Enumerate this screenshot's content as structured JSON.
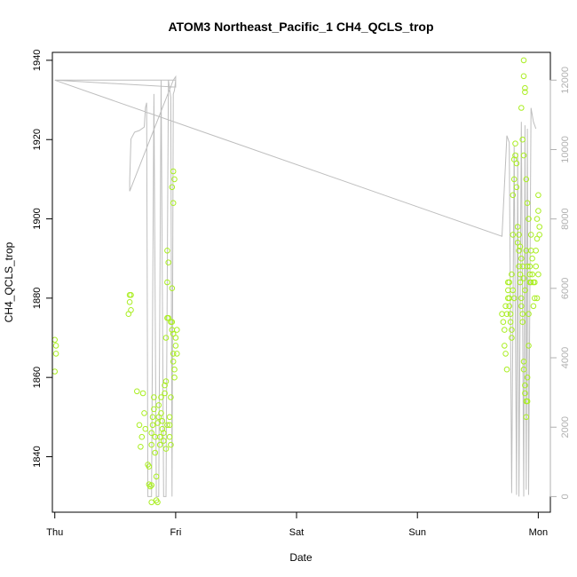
{
  "chart_data": {
    "type": "scatter",
    "title": "ATOM3 Northeast_Pacific_1 CH4_QCLS_trop",
    "xlabel": "Date",
    "ylabel": "CH4_QCLS_trop",
    "xlim_days": [
      -0.02,
      4.1
    ],
    "ylim": [
      1826,
      1942
    ],
    "y2lim": [
      -450,
      12800
    ],
    "x_ticks": [
      {
        "pos": 0,
        "label": "Thu"
      },
      {
        "pos": 1,
        "label": "Fri"
      },
      {
        "pos": 2,
        "label": "Sat"
      },
      {
        "pos": 3,
        "label": "Sun"
      },
      {
        "pos": 4,
        "label": "Mon"
      }
    ],
    "y_ticks": [
      1840,
      1860,
      1880,
      1900,
      1920,
      1940
    ],
    "y2_ticks": [
      0,
      2000,
      4000,
      6000,
      8000,
      10000,
      12000
    ],
    "grid": false,
    "colors": {
      "points": "#aaee22",
      "line": "#bebebe",
      "axis": "#000000",
      "right_axis": "#b0b0b0"
    },
    "series": [
      {
        "kind": "points",
        "points": [
          [
            0.0,
            1869.5
          ],
          [
            0.01,
            1868
          ],
          [
            0.01,
            1866
          ],
          [
            0.0,
            1861.5
          ],
          [
            0.62,
            1880.8
          ],
          [
            0.63,
            1880.8
          ],
          [
            0.62,
            1879
          ],
          [
            0.63,
            1877
          ],
          [
            0.61,
            1876
          ],
          [
            0.68,
            1856.5
          ],
          [
            0.7,
            1848
          ],
          [
            0.71,
            1842.5
          ],
          [
            0.72,
            1845
          ],
          [
            0.73,
            1856
          ],
          [
            0.74,
            1851
          ],
          [
            0.75,
            1847
          ],
          [
            0.77,
            1838
          ],
          [
            0.78,
            1837.5
          ],
          [
            0.78,
            1833
          ],
          [
            0.79,
            1832.5
          ],
          [
            0.8,
            1832.8
          ],
          [
            0.8,
            1828.5
          ],
          [
            0.8,
            1846
          ],
          [
            0.8,
            1843
          ],
          [
            0.81,
            1848
          ],
          [
            0.81,
            1850
          ],
          [
            0.82,
            1852
          ],
          [
            0.82,
            1855
          ],
          [
            0.83,
            1845
          ],
          [
            0.83,
            1841
          ],
          [
            0.84,
            1835
          ],
          [
            0.84,
            1829
          ],
          [
            0.85,
            1828.5
          ],
          [
            0.85,
            1848.5
          ],
          [
            0.86,
            1853
          ],
          [
            0.86,
            1850
          ],
          [
            0.87,
            1845
          ],
          [
            0.87,
            1843
          ],
          [
            0.88,
            1855
          ],
          [
            0.88,
            1851
          ],
          [
            0.89,
            1847
          ],
          [
            0.89,
            1849
          ],
          [
            0.9,
            1844
          ],
          [
            0.9,
            1846
          ],
          [
            0.91,
            1858
          ],
          [
            0.91,
            1856
          ],
          [
            0.92,
            1859
          ],
          [
            0.92,
            1870
          ],
          [
            0.93,
            1875
          ],
          [
            0.93,
            1892
          ],
          [
            0.93,
            1884
          ],
          [
            0.94,
            1889
          ],
          [
            0.94,
            1875
          ],
          [
            0.95,
            1850
          ],
          [
            0.95,
            1848
          ],
          [
            0.95,
            1845
          ],
          [
            0.96,
            1843
          ],
          [
            0.96,
            1855
          ],
          [
            0.96,
            1874
          ],
          [
            0.97,
            1882.5
          ],
          [
            0.97,
            1874
          ],
          [
            0.97,
            1872
          ],
          [
            0.98,
            1871
          ],
          [
            0.98,
            1866
          ],
          [
            0.98,
            1864
          ],
          [
            0.99,
            1862
          ],
          [
            0.99,
            1860
          ],
          [
            1.0,
            1868
          ],
          [
            1.0,
            1870
          ],
          [
            1.01,
            1872
          ],
          [
            1.01,
            1866
          ],
          [
            0.98,
            1912
          ],
          [
            0.99,
            1910
          ],
          [
            0.97,
            1908
          ],
          [
            0.98,
            1904
          ],
          [
            0.93,
            1848
          ],
          [
            0.92,
            1842
          ],
          [
            3.7,
            1876
          ],
          [
            3.71,
            1874
          ],
          [
            3.72,
            1872
          ],
          [
            3.72,
            1868
          ],
          [
            3.73,
            1866
          ],
          [
            3.74,
            1862
          ],
          [
            3.75,
            1884
          ],
          [
            3.75,
            1882
          ],
          [
            3.76,
            1880
          ],
          [
            3.76,
            1878
          ],
          [
            3.77,
            1876
          ],
          [
            3.77,
            1874
          ],
          [
            3.78,
            1872
          ],
          [
            3.78,
            1870
          ],
          [
            3.79,
            1896
          ],
          [
            3.79,
            1906
          ],
          [
            3.8,
            1910
          ],
          [
            3.8,
            1915
          ],
          [
            3.81,
            1916
          ],
          [
            3.81,
            1919
          ],
          [
            3.82,
            1914
          ],
          [
            3.82,
            1908
          ],
          [
            3.83,
            1898
          ],
          [
            3.83,
            1894
          ],
          [
            3.84,
            1892
          ],
          [
            3.84,
            1888
          ],
          [
            3.85,
            1886
          ],
          [
            3.85,
            1884
          ],
          [
            3.86,
            1880
          ],
          [
            3.86,
            1878
          ],
          [
            3.87,
            1876
          ],
          [
            3.87,
            1874
          ],
          [
            3.88,
            1864
          ],
          [
            3.88,
            1862
          ],
          [
            3.89,
            1858
          ],
          [
            3.89,
            1856
          ],
          [
            3.9,
            1854
          ],
          [
            3.9,
            1850
          ],
          [
            3.91,
            1854
          ],
          [
            3.91,
            1860
          ],
          [
            3.92,
            1868
          ],
          [
            3.92,
            1876
          ],
          [
            3.93,
            1884
          ],
          [
            3.93,
            1888
          ],
          [
            3.94,
            1892
          ],
          [
            3.94,
            1896
          ],
          [
            3.95,
            1890
          ],
          [
            3.95,
            1886
          ],
          [
            3.96,
            1884
          ],
          [
            3.96,
            1878
          ],
          [
            3.97,
            1880
          ],
          [
            3.97,
            1884
          ],
          [
            3.98,
            1888
          ],
          [
            3.98,
            1892
          ],
          [
            3.99,
            1895
          ],
          [
            3.99,
            1900
          ],
          [
            4.0,
            1906
          ],
          [
            4.0,
            1902
          ],
          [
            4.01,
            1898
          ],
          [
            4.01,
            1896
          ],
          [
            4.0,
            1886
          ],
          [
            3.99,
            1880
          ],
          [
            3.88,
            1940
          ],
          [
            3.88,
            1936
          ],
          [
            3.89,
            1933
          ],
          [
            3.89,
            1932
          ],
          [
            3.86,
            1928
          ],
          [
            3.87,
            1920
          ],
          [
            3.88,
            1916
          ],
          [
            3.9,
            1910
          ],
          [
            3.91,
            1904
          ],
          [
            3.92,
            1900
          ],
          [
            3.9,
            1892
          ],
          [
            3.91,
            1888
          ],
          [
            3.93,
            1886
          ],
          [
            3.94,
            1884
          ],
          [
            3.73,
            1878
          ],
          [
            3.74,
            1876
          ],
          [
            3.75,
            1880
          ],
          [
            3.76,
            1884
          ],
          [
            3.78,
            1886
          ],
          [
            3.79,
            1882
          ],
          [
            3.8,
            1880
          ],
          [
            3.84,
            1896
          ],
          [
            3.85,
            1893
          ],
          [
            3.86,
            1890
          ],
          [
            3.87,
            1888
          ],
          [
            3.88,
            1885
          ],
          [
            3.89,
            1882
          ]
        ]
      },
      {
        "kind": "line",
        "points": [
          [
            0.0,
            12000
          ],
          [
            1.0,
            12000
          ],
          [
            1.0,
            12100
          ],
          [
            0.98,
            12000
          ],
          [
            0.62,
            8800
          ],
          [
            0.62,
            9100
          ],
          [
            0.63,
            10300
          ],
          [
            0.66,
            10500
          ],
          [
            0.7,
            10550
          ],
          [
            0.74,
            10650
          ],
          [
            0.75,
            11200
          ],
          [
            0.76,
            11350
          ],
          [
            0.77,
            0
          ],
          [
            0.8,
            0
          ],
          [
            0.82,
            11600
          ],
          [
            0.84,
            0
          ],
          [
            0.86,
            0
          ],
          [
            0.88,
            12000
          ],
          [
            0.9,
            0
          ],
          [
            0.92,
            0
          ],
          [
            0.94,
            12000
          ],
          [
            0.96,
            11500
          ],
          [
            0.97,
            0
          ],
          [
            0.98,
            11600
          ],
          [
            0.99,
            11700
          ],
          [
            1.0,
            12000
          ],
          [
            1.0,
            11800
          ],
          [
            0.0,
            12000
          ],
          [
            3.7,
            7500
          ],
          [
            3.74,
            10400
          ],
          [
            3.76,
            10200
          ],
          [
            3.78,
            100
          ],
          [
            3.8,
            10100
          ],
          [
            3.82,
            50
          ],
          [
            3.83,
            9900
          ],
          [
            3.84,
            0
          ],
          [
            3.86,
            10800
          ],
          [
            3.88,
            0
          ],
          [
            3.89,
            10700
          ],
          [
            3.9,
            200
          ],
          [
            3.91,
            10600
          ],
          [
            3.92,
            50
          ],
          [
            3.94,
            11200
          ],
          [
            3.96,
            10800
          ],
          [
            3.97,
            10700
          ],
          [
            3.98,
            10600
          ]
        ]
      }
    ]
  }
}
